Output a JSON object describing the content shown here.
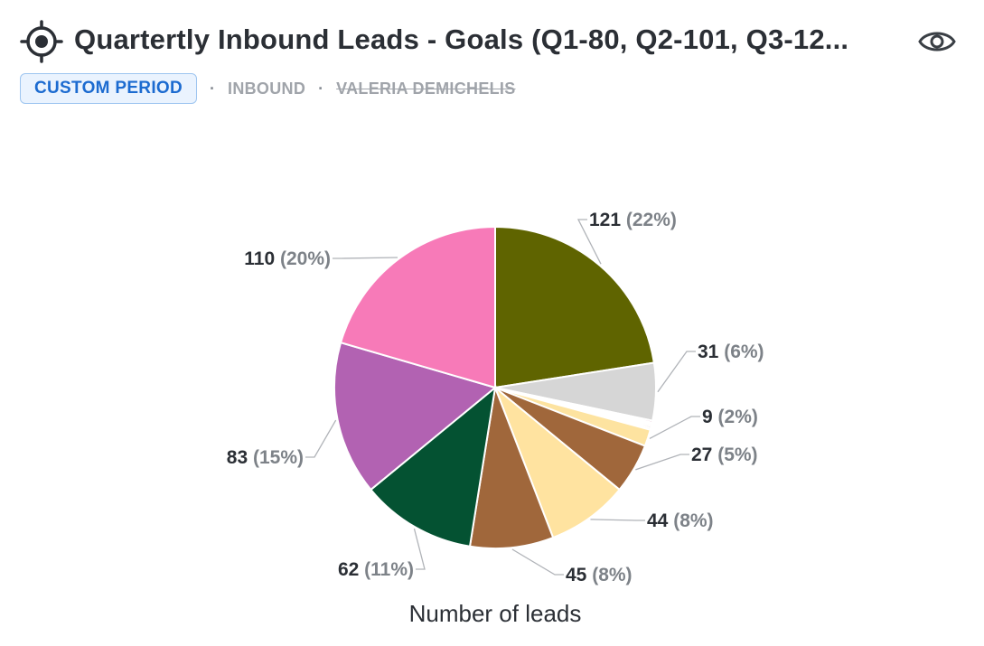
{
  "header": {
    "title": "Quartertly Inbound Leads - Goals (Q1-80, Q2-101, Q3-12...",
    "badge": "CUSTOM PERIOD",
    "tag": "INBOUND",
    "owner": "VALERIA DEMICHELIS",
    "icons": [
      "target-icon",
      "eye-icon"
    ]
  },
  "chart_data": {
    "type": "pie",
    "xlabel": "Number of leads",
    "start_angle_deg": 90,
    "slices": [
      {
        "value": 121,
        "pct": "22%",
        "color": "#5f6400",
        "label": true
      },
      {
        "value": 31,
        "pct": "6%",
        "color": "#d6d6d6",
        "label": true
      },
      {
        "value": 1,
        "color": "#9c1c5c"
      },
      {
        "value": 1,
        "color": "#c27fae"
      },
      {
        "value": 1,
        "color": "#f0c9a0"
      },
      {
        "value": 1,
        "color": "#8a5a3a"
      },
      {
        "value": 1,
        "color": "#e9d5b5"
      },
      {
        "value": 9,
        "pct": "2%",
        "color": "#fde3a0",
        "label": true
      },
      {
        "value": 27,
        "pct": "5%",
        "color": "#a0673b",
        "label": true
      },
      {
        "value": 44,
        "pct": "8%",
        "color": "#ffe3a0",
        "label": true
      },
      {
        "value": 45,
        "pct": "8%",
        "color": "#a0673b",
        "label": true
      },
      {
        "value": 62,
        "pct": "11%",
        "color": "#045232",
        "label": true
      },
      {
        "value": 83,
        "pct": "15%",
        "color": "#b262b2",
        "label": true
      },
      {
        "value": 110,
        "pct": "20%",
        "color": "#f77ab8",
        "label": true
      }
    ]
  }
}
